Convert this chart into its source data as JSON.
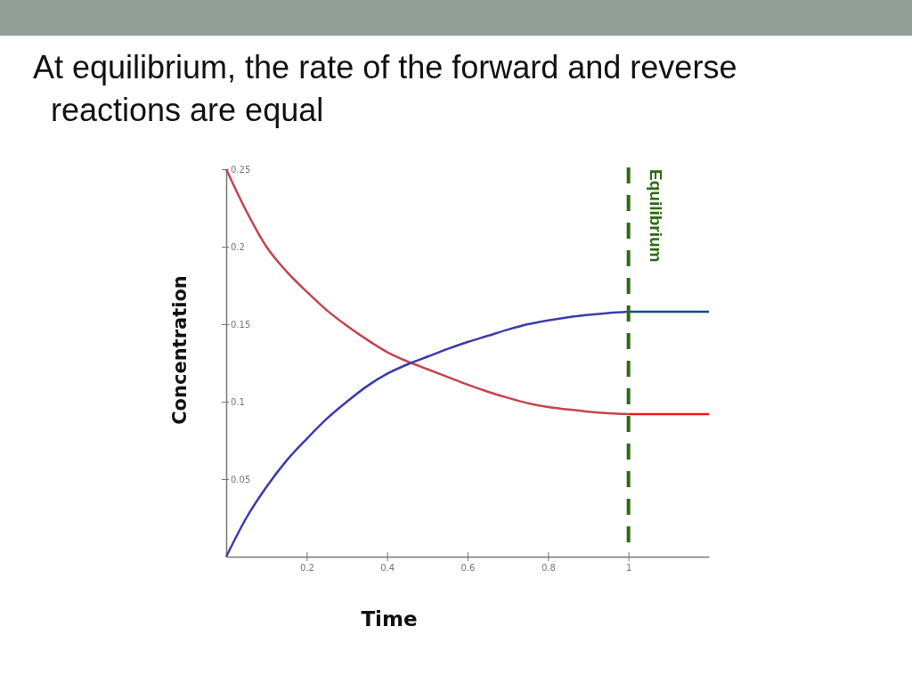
{
  "chart_data": {
    "type": "line",
    "title": "At equilibrium, the rate of the forward and reverse reactions are equal",
    "xlabel": "Time",
    "ylabel": "Concentration",
    "xlim": [
      0,
      1.2
    ],
    "xticks": [
      0.2,
      0.4,
      0.6,
      0.8,
      1
    ],
    "ylim": [
      0,
      0.25
    ],
    "yticks": [
      0.05,
      0.1,
      0.15,
      0.2,
      0.25
    ],
    "series": [
      {
        "color": "#c4454d",
        "x": [
          0,
          0.05,
          0.1,
          0.15,
          0.2,
          0.25,
          0.3,
          0.35,
          0.4,
          0.45,
          0.5,
          0.55,
          0.6,
          0.65,
          0.7,
          0.75,
          0.8,
          0.85,
          0.9,
          0.95,
          1
        ],
        "values": [
          0.25,
          0.223,
          0.2,
          0.184,
          0.171,
          0.159,
          0.149,
          0.14,
          0.132,
          0.126,
          0.121,
          0.116,
          0.111,
          0.1065,
          0.1025,
          0.099,
          0.0965,
          0.095,
          0.0935,
          0.0925,
          0.092
        ]
      },
      {
        "color": "#3c3ca8",
        "x": [
          0,
          0.05,
          0.1,
          0.15,
          0.2,
          0.25,
          0.3,
          0.35,
          0.4,
          0.45,
          0.5,
          0.55,
          0.6,
          0.65,
          0.7,
          0.75,
          0.8,
          0.85,
          0.9,
          0.95,
          1
        ],
        "values": [
          0,
          0.025,
          0.045,
          0.062,
          0.076,
          0.089,
          0.1,
          0.11,
          0.118,
          0.124,
          0.129,
          0.134,
          0.1385,
          0.1425,
          0.1465,
          0.15,
          0.1525,
          0.1545,
          0.156,
          0.1572,
          0.158
        ]
      },
      {
        "color": "#f21818",
        "x": [
          1,
          1.2
        ],
        "values": [
          0.092,
          0.092
        ]
      },
      {
        "color": "#0e4c8c",
        "x": [
          1,
          1.2
        ],
        "values": [
          0.158,
          0.158
        ]
      }
    ],
    "ref_lines": [
      {
        "axis": "x",
        "value": 1,
        "label": "Equilibrium",
        "color": "#2e6b12",
        "line_style": "dashed"
      }
    ]
  }
}
